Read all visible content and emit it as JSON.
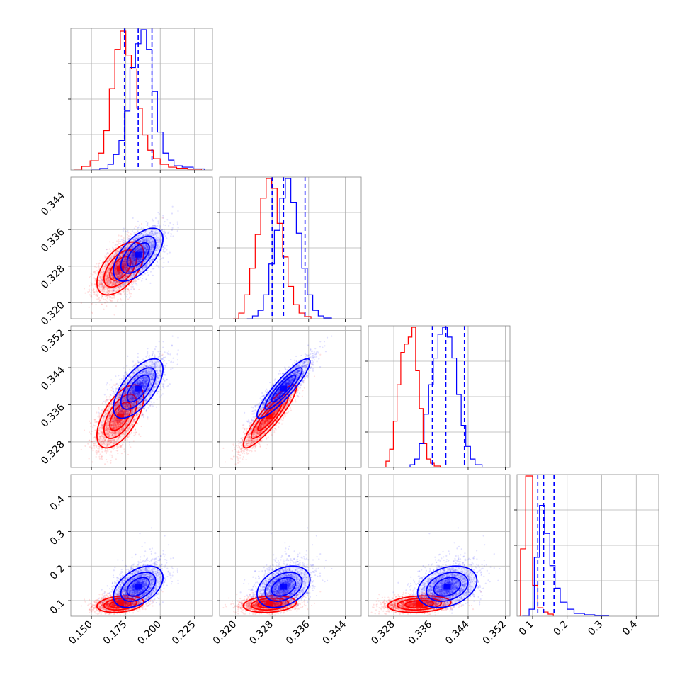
{
  "chart_data": {
    "type": "corner",
    "parameters": [
      {
        "range": [
          0.135,
          0.238
        ],
        "ticks": [
          0.15,
          0.175,
          0.2,
          0.225
        ],
        "tick_labels": [
          "0.150",
          "0.175",
          "0.200",
          "0.225"
        ]
      },
      {
        "range": [
          0.3165,
          0.3475
        ],
        "ticks": [
          0.32,
          0.328,
          0.336,
          0.344
        ],
        "tick_labels": [
          "0.320",
          "0.328",
          "0.336",
          "0.344"
        ]
      },
      {
        "range": [
          0.3225,
          0.353
        ],
        "ticks": [
          0.328,
          0.336,
          0.344,
          0.352
        ],
        "tick_labels": [
          "0.328",
          "0.336",
          "0.344",
          "0.352"
        ]
      },
      {
        "range": [
          0.055,
          0.465
        ],
        "ticks": [
          0.1,
          0.2,
          0.3,
          0.4
        ],
        "tick_labels": [
          "0.1",
          "0.2",
          "0.3",
          "0.4"
        ]
      }
    ],
    "grid": true,
    "series": [
      {
        "color": "#ff0000",
        "means": [
          0.171,
          0.3275,
          0.3335,
          0.09
        ],
        "sds": [
          0.0085,
          0.0029,
          0.0034,
          0.012
        ],
        "corr": [
          [
            1,
            0.55,
            0.6,
            0.25
          ],
          [
            0.55,
            1,
            0.9,
            0.2
          ],
          [
            0.6,
            0.9,
            1,
            0.2
          ],
          [
            0.25,
            0.2,
            0.2,
            1
          ]
        ]
      },
      {
        "color": "#0000ff",
        "means": [
          0.184,
          0.3305,
          0.3395,
          0.14
        ],
        "sds": [
          0.009,
          0.0029,
          0.0032,
          0.03
        ],
        "corr": [
          [
            1,
            0.6,
            0.65,
            0.45
          ],
          [
            0.6,
            1,
            0.9,
            0.35
          ],
          [
            0.65,
            0.9,
            1,
            0.3
          ],
          [
            0.45,
            0.35,
            0.3,
            1
          ]
        ]
      }
    ],
    "quantile_lines": {
      "color": "#0000ff",
      "values": [
        [
          0.174,
          0.184,
          0.194
        ],
        [
          0.328,
          0.3305,
          0.3352
        ],
        [
          0.3363,
          0.3392,
          0.3432
        ],
        [
          0.115,
          0.132,
          0.162
        ]
      ]
    },
    "red_histograms": [
      [
        [
          0.137,
          0.0
        ],
        [
          0.143,
          0.025
        ],
        [
          0.149,
          0.065
        ],
        [
          0.155,
          0.12
        ],
        [
          0.159,
          0.28
        ],
        [
          0.163,
          0.58
        ],
        [
          0.167,
          0.86
        ],
        [
          0.171,
          0.99
        ],
        [
          0.175,
          0.82
        ],
        [
          0.179,
          0.72
        ],
        [
          0.183,
          0.44
        ],
        [
          0.187,
          0.25
        ],
        [
          0.191,
          0.14
        ],
        [
          0.195,
          0.08
        ],
        [
          0.2,
          0.04
        ],
        [
          0.206,
          0.02
        ],
        [
          0.212,
          0.012
        ],
        [
          0.22,
          0.006
        ],
        [
          0.23,
          0.0
        ]
      ],
      [
        [
          0.3195,
          0.0
        ],
        [
          0.3207,
          0.04
        ],
        [
          0.3219,
          0.17
        ],
        [
          0.3231,
          0.36
        ],
        [
          0.3243,
          0.6
        ],
        [
          0.3255,
          0.86
        ],
        [
          0.3267,
          1.0
        ],
        [
          0.3279,
          0.93
        ],
        [
          0.3291,
          0.68
        ],
        [
          0.3303,
          0.44
        ],
        [
          0.3315,
          0.23
        ],
        [
          0.3327,
          0.1
        ],
        [
          0.3339,
          0.04
        ],
        [
          0.3351,
          0.015
        ],
        [
          0.3365,
          0.0
        ]
      ],
      [
        [
          0.3255,
          0.0
        ],
        [
          0.3263,
          0.045
        ],
        [
          0.3271,
          0.13
        ],
        [
          0.3279,
          0.33
        ],
        [
          0.3287,
          0.59
        ],
        [
          0.3295,
          0.82
        ],
        [
          0.3303,
          0.88
        ],
        [
          0.3311,
          0.93
        ],
        [
          0.3319,
          1.0
        ],
        [
          0.3327,
          0.69
        ],
        [
          0.3335,
          0.42
        ],
        [
          0.3343,
          0.17
        ],
        [
          0.3351,
          0.06
        ],
        [
          0.3359,
          0.03
        ],
        [
          0.3367,
          0.01
        ],
        [
          0.338,
          0.0
        ]
      ],
      [
        [
          0.062,
          0.0
        ],
        [
          0.065,
          0.48
        ],
        [
          0.08,
          1.0
        ],
        [
          0.1,
          0.22
        ],
        [
          0.115,
          0.06
        ],
        [
          0.13,
          0.03
        ],
        [
          0.145,
          0.015
        ],
        [
          0.16,
          0.0
        ]
      ]
    ],
    "blue_histograms": [
      [
        [
          0.15,
          0.0
        ],
        [
          0.156,
          0.01
        ],
        [
          0.162,
          0.04
        ],
        [
          0.166,
          0.11
        ],
        [
          0.17,
          0.21
        ],
        [
          0.174,
          0.42
        ],
        [
          0.178,
          0.73
        ],
        [
          0.182,
          0.9
        ],
        [
          0.186,
          1.0
        ],
        [
          0.19,
          0.86
        ],
        [
          0.194,
          0.56
        ],
        [
          0.198,
          0.27
        ],
        [
          0.202,
          0.12
        ],
        [
          0.206,
          0.07
        ],
        [
          0.21,
          0.03
        ],
        [
          0.216,
          0.02
        ],
        [
          0.224,
          0.008
        ],
        [
          0.232,
          0.0
        ]
      ],
      [
        [
          0.3225,
          0.0
        ],
        [
          0.3237,
          0.02
        ],
        [
          0.3249,
          0.06
        ],
        [
          0.3261,
          0.17
        ],
        [
          0.3273,
          0.39
        ],
        [
          0.3285,
          0.63
        ],
        [
          0.3297,
          0.86
        ],
        [
          0.3309,
          1.0
        ],
        [
          0.3321,
          0.83
        ],
        [
          0.3333,
          0.61
        ],
        [
          0.3345,
          0.36
        ],
        [
          0.3357,
          0.17
        ],
        [
          0.3369,
          0.06
        ],
        [
          0.3381,
          0.02
        ],
        [
          0.3393,
          0.005
        ],
        [
          0.341,
          0.0
        ]
      ],
      [
        [
          0.3305,
          0.0
        ],
        [
          0.3315,
          0.02
        ],
        [
          0.3325,
          0.06
        ],
        [
          0.3335,
          0.17
        ],
        [
          0.3345,
          0.38
        ],
        [
          0.3355,
          0.59
        ],
        [
          0.3365,
          0.78
        ],
        [
          0.3375,
          0.95
        ],
        [
          0.3385,
          1.0
        ],
        [
          0.3395,
          0.93
        ],
        [
          0.3405,
          0.78
        ],
        [
          0.3415,
          0.52
        ],
        [
          0.3425,
          0.3
        ],
        [
          0.3435,
          0.15
        ],
        [
          0.3445,
          0.06
        ],
        [
          0.3455,
          0.02
        ],
        [
          0.347,
          0.0
        ]
      ],
      [
        [
          0.07,
          0.0
        ],
        [
          0.09,
          0.05
        ],
        [
          0.105,
          0.42
        ],
        [
          0.12,
          0.79
        ],
        [
          0.135,
          0.59
        ],
        [
          0.15,
          0.36
        ],
        [
          0.165,
          0.2
        ],
        [
          0.18,
          0.1
        ],
        [
          0.2,
          0.05
        ],
        [
          0.22,
          0.02
        ],
        [
          0.25,
          0.01
        ],
        [
          0.28,
          0.005
        ],
        [
          0.32,
          0.0
        ]
      ]
    ]
  }
}
